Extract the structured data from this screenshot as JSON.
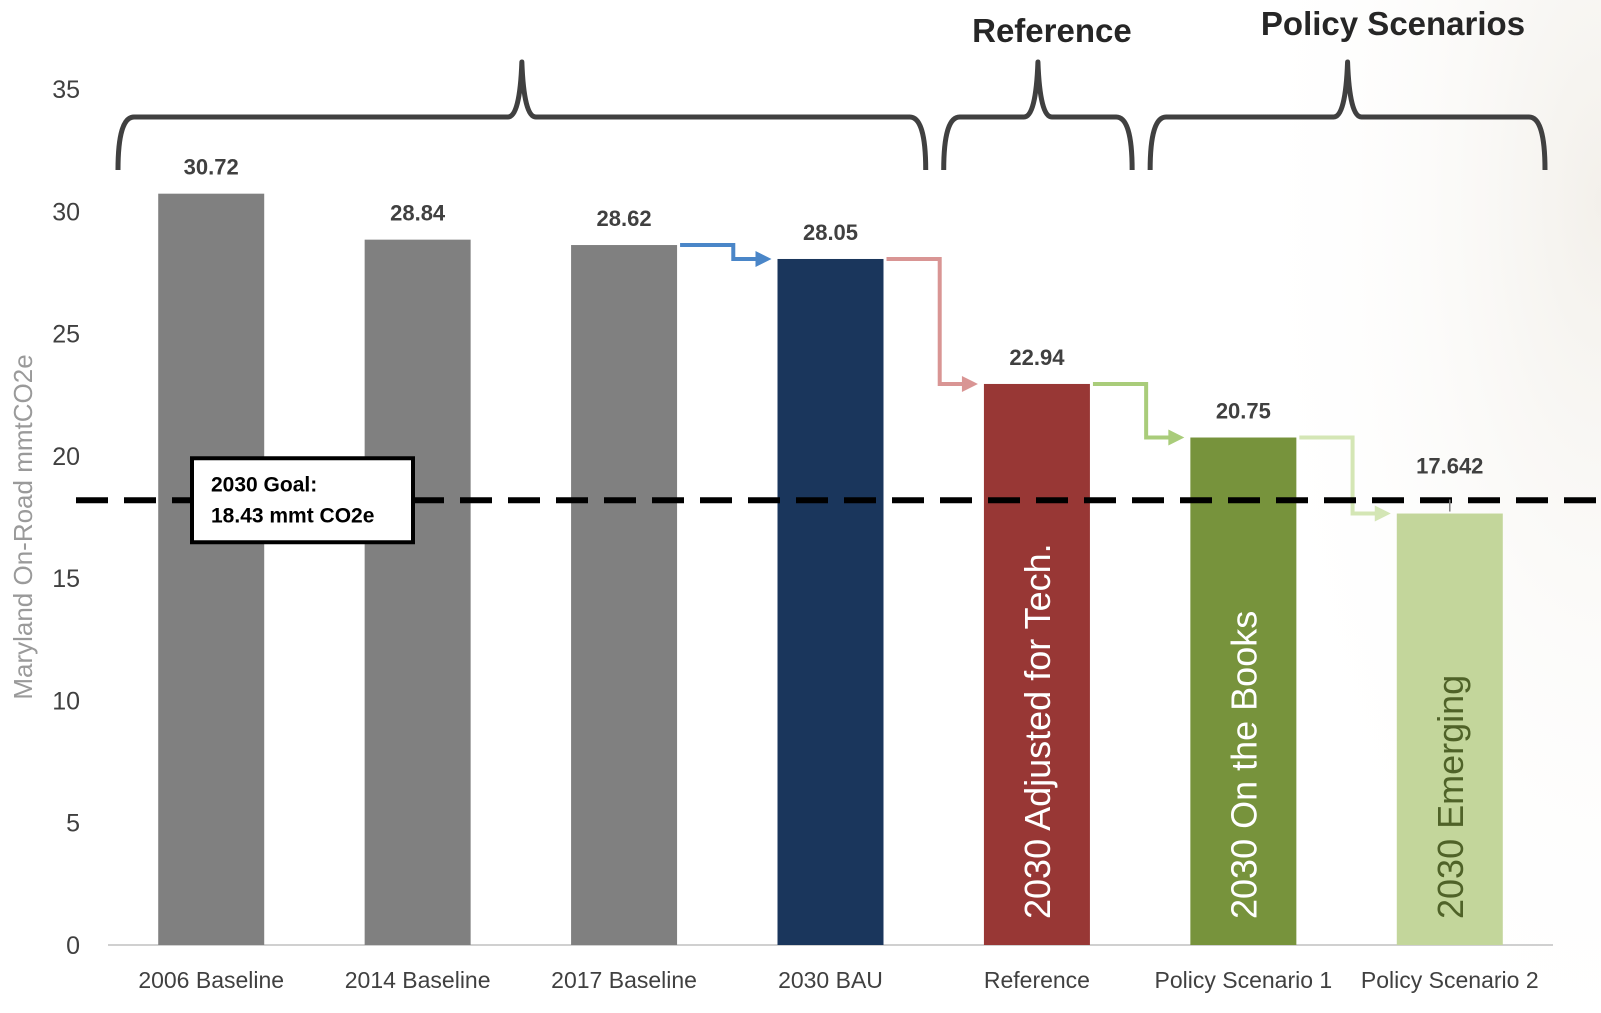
{
  "chart_data": {
    "type": "bar",
    "categories": [
      "2006 Baseline",
      "2014 Baseline",
      "2017 Baseline",
      "2030 BAU",
      "Reference",
      "Policy Scenario 1",
      "Policy Scenario 2"
    ],
    "values": [
      30.72,
      28.84,
      28.62,
      28.05,
      22.94,
      20.75,
      17.642
    ],
    "value_labels": [
      "30.72",
      "28.84",
      "28.62",
      "28.05",
      "22.94",
      "20.75",
      "17.642"
    ],
    "bar_colors": [
      "#808080",
      "#808080",
      "#808080",
      "#1a365c",
      "#983735",
      "#77933c",
      "#c3d69b"
    ],
    "bar_inner_labels": [
      "",
      "",
      "",
      "",
      "2030 Adjusted for Tech.",
      "2030 On the Books",
      "2030 Emerging"
    ],
    "bar_inner_label_colors": [
      "#ffffff",
      "#ffffff",
      "#ffffff",
      "#ffffff",
      "#ffffff",
      "#ffffff",
      "#4f6228"
    ],
    "ylabel": "Maryland On-Road mmtCO2e",
    "xlabel": "",
    "ylim": [
      0,
      35
    ],
    "yticks": [
      0,
      5,
      10,
      15,
      20,
      25,
      30,
      35
    ],
    "grid": false,
    "goal_line": {
      "value": 18.43,
      "label_line1": "2030 Goal:",
      "label_line2": "18.43 mmt CO2e",
      "style": "dashed",
      "color": "#000000"
    },
    "groups": [
      {
        "title": "",
        "from_category": 0,
        "to_category": 3
      },
      {
        "title": "Reference",
        "from_category": 4,
        "to_category": 4
      },
      {
        "title": "Policy Scenarios",
        "from_category": 5,
        "to_category": 6
      }
    ],
    "step_arrows": [
      {
        "from_category": 2,
        "to_category": 3,
        "color": "#4a86c8"
      },
      {
        "from_category": 3,
        "to_category": 4,
        "color": "#d99594"
      },
      {
        "from_category": 4,
        "to_category": 5,
        "color": "#a9cc7a"
      },
      {
        "from_category": 5,
        "to_category": 6,
        "color": "#d4e6b5"
      }
    ]
  }
}
